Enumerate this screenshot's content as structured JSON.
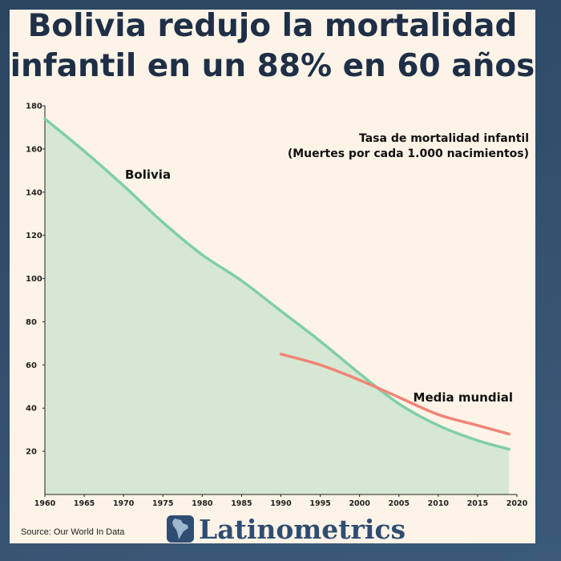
{
  "title_line1": "Bolivia redujo la mortalidad",
  "title_line2": "infantil en un 88% en 60 años",
  "source": "Source: Our World In Data",
  "brand": "Latinometrics",
  "colors": {
    "bolivia": "#7fcfa6",
    "bolivia_fill": "#d6e8d3",
    "world": "#f08577",
    "title": "#1e2f47",
    "brand": "#2f4d72"
  },
  "chart_data": {
    "type": "line",
    "title": "Tasa de mortalidad infantil",
    "subtitle": "(Muertes por cada 1.000 nacimientos)",
    "xlim": [
      1960,
      2020
    ],
    "ylim": [
      0,
      180
    ],
    "x_ticks": [
      1960,
      1965,
      1970,
      1975,
      1980,
      1985,
      1990,
      1995,
      2000,
      2005,
      2010,
      2015,
      2020
    ],
    "y_ticks": [
      20,
      40,
      60,
      80,
      100,
      120,
      140,
      160,
      180
    ],
    "grid": false,
    "series": [
      {
        "name": "Bolivia",
        "area": true,
        "x": [
          1960,
          1965,
          1970,
          1975,
          1980,
          1985,
          1990,
          1995,
          2000,
          2005,
          2010,
          2015,
          2019
        ],
        "values": [
          174,
          159,
          143,
          126,
          111,
          99,
          85,
          71,
          56,
          42,
          32,
          25,
          21
        ]
      },
      {
        "name": "Media mundial",
        "area": false,
        "x": [
          1990,
          1995,
          2000,
          2005,
          2010,
          2015,
          2019
        ],
        "values": [
          65,
          60,
          53,
          45,
          37,
          32,
          28
        ]
      }
    ]
  }
}
